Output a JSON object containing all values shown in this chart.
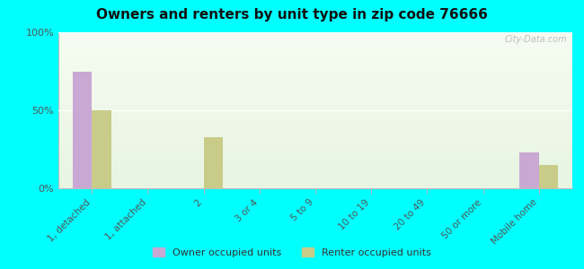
{
  "title": "Owners and renters by unit type in zip code 76666",
  "categories": [
    "1, detached",
    "1, attached",
    "2",
    "3 or 4",
    "5 to 9",
    "10 to 19",
    "20 to 49",
    "50 or more",
    "Mobile home"
  ],
  "owner_values": [
    75,
    0,
    0,
    0,
    0,
    0,
    0,
    0,
    23
  ],
  "renter_values": [
    50,
    0,
    33,
    0,
    0,
    0,
    0,
    0,
    15
  ],
  "owner_color": "#c9a8d4",
  "renter_color": "#c8cc88",
  "background_color": "#00ffff",
  "ylim": [
    0,
    100
  ],
  "yticks": [
    0,
    50,
    100
  ],
  "ytick_labels": [
    "0%",
    "50%",
    "100%"
  ],
  "bar_width": 0.35,
  "watermark": "City-Data.com",
  "legend_labels": [
    "Owner occupied units",
    "Renter occupied units"
  ]
}
